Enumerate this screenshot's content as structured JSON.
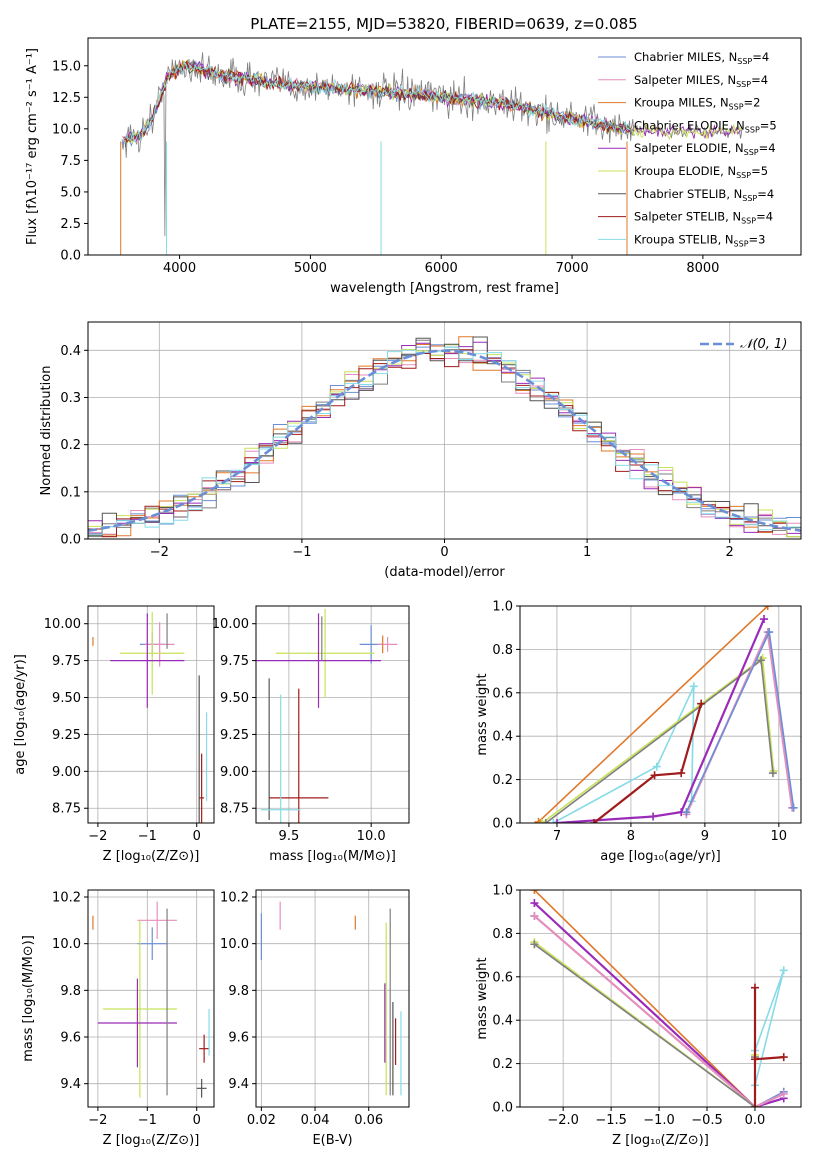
{
  "colors": {
    "Chabrier MILES": "#6a8fd6",
    "Salpeter MILES": "#e58fbe",
    "Kroupa MILES": "#e0782a",
    "Chabrier ELODIE": "#7f7f7f",
    "Salpeter ELODIE": "#9a2bb8",
    "Kroupa ELODIE": "#c7e35a",
    "Chabrier STELIB": "#555555",
    "Salpeter STELIB": "#a01c1c",
    "Kroupa STELIB": "#86dbe6"
  },
  "chart_data": [
    {
      "id": "spectrum",
      "type": "line",
      "title": "PLATE=2155, MJD=53820, FIBERID=0639, z=0.085",
      "xlabel": "wavelength [Angstrom, rest frame]",
      "ylabel": "Flux [fλ10⁻¹⁷ erg cm⁻² s⁻¹ A⁻¹]",
      "xlim": [
        3300,
        8750
      ],
      "ylim": [
        0,
        17.2
      ],
      "xticks": [
        4000,
        5000,
        6000,
        7000,
        8000
      ],
      "yticks": [
        0.0,
        2.5,
        5.0,
        7.5,
        10.0,
        12.5,
        15.0
      ],
      "grid": false,
      "legend_position": "top-right",
      "legend": [
        "Chabrier MILES, N_SSP=4",
        "Salpeter MILES, N_SSP=4",
        "Kroupa MILES, N_SSP=2",
        "Chabrier ELODIE, N_SSP=5",
        "Salpeter ELODIE, N_SSP=4",
        "Kroupa ELODIE, N_SSP=5",
        "Chabrier STELIB, N_SSP=4",
        "Salpeter STELIB, N_SSP=4",
        "Kroupa STELIB, N_SSP=3"
      ],
      "continuum": {
        "x": [
          3550,
          3700,
          3800,
          3900,
          4000,
          4100,
          4300,
          4500,
          4700,
          5000,
          5300,
          5600,
          5900,
          6200,
          6500,
          6800,
          7000,
          7200,
          7400,
          7500
        ],
        "y": [
          9.0,
          9.5,
          11.0,
          14.0,
          14.8,
          15.0,
          14.2,
          14.0,
          13.6,
          13.3,
          13.2,
          12.9,
          12.6,
          12.3,
          12.0,
          11.2,
          10.8,
          10.4,
          10.0,
          9.8
        ]
      }
    },
    {
      "id": "residuals",
      "type": "line",
      "xlabel": "(data-model)/error",
      "ylabel": "Normed distribution",
      "xlim": [
        -2.5,
        2.5
      ],
      "ylim": [
        0,
        0.46
      ],
      "xticks": [
        -2,
        -1,
        0,
        1,
        2
      ],
      "yticks": [
        0.0,
        0.1,
        0.2,
        0.3,
        0.4
      ],
      "grid": true,
      "legend_position": "top-right",
      "reference_label": "𝒩(0, 1)"
    },
    {
      "id": "age-vs-Z",
      "type": "scatter",
      "xlabel": "Z [log₁₀(Z/Z⊙)]",
      "ylabel": "age  [log₁₀(age/yr)]",
      "xlim": [
        -2.2,
        0.35
      ],
      "ylim": [
        8.65,
        10.12
      ],
      "xticks": [
        -2,
        -1,
        0
      ],
      "yticks": [
        8.75,
        9.0,
        9.25,
        9.5,
        9.75,
        10.0
      ],
      "grid": true,
      "points": [
        {
          "model": "Kroupa MILES",
          "x": -2.1,
          "xerr": 0.0,
          "y": 9.88,
          "yerr": 0.03
        },
        {
          "model": "Chabrier MILES",
          "x": -0.9,
          "xerr": 0.25,
          "y": 9.86,
          "yerr": 0.08
        },
        {
          "model": "Salpeter MILES",
          "x": -0.75,
          "xerr": 0.3,
          "y": 9.86,
          "yerr": 0.15
        },
        {
          "model": "Kroupa ELODIE",
          "x": -0.9,
          "xerr": 0.65,
          "y": 9.8,
          "yerr": 0.28
        },
        {
          "model": "Salpeter ELODIE",
          "x": -1.0,
          "xerr": 0.75,
          "y": 9.75,
          "yerr": 0.32
        },
        {
          "model": "Chabrier ELODIE",
          "x": -0.6,
          "xerr": 0.0,
          "y": 9.95,
          "yerr": 0.12
        },
        {
          "model": "Chabrier STELIB",
          "x": 0.05,
          "xerr": 0.0,
          "y": 9.15,
          "yerr": 0.5
        },
        {
          "model": "Salpeter STELIB",
          "x": 0.1,
          "xerr": 0.05,
          "y": 8.82,
          "yerr": 0.3
        },
        {
          "model": "Kroupa STELIB",
          "x": 0.2,
          "xerr": 0.0,
          "y": 9.1,
          "yerr": 0.3
        }
      ]
    },
    {
      "id": "age-vs-mass",
      "type": "scatter",
      "xlabel": "mass [log₁₀(M/M⊙)]",
      "ylabel": "",
      "xlim": [
        9.3,
        10.23
      ],
      "ylim": [
        8.65,
        10.12
      ],
      "xticks": [
        9.5,
        10.0
      ],
      "yticks": [
        8.75,
        9.0,
        9.25,
        9.5,
        9.75,
        10.0
      ],
      "grid": true,
      "points": [
        {
          "model": "Chabrier MILES",
          "x": 10.0,
          "xerr": 0.07,
          "y": 9.86,
          "yerr": 0.13
        },
        {
          "model": "Salpeter MILES",
          "x": 10.1,
          "xerr": 0.06,
          "y": 9.86,
          "yerr": 0.05
        },
        {
          "model": "Kroupa MILES",
          "x": 10.07,
          "xerr": 0.0,
          "y": 9.86,
          "yerr": 0.06
        },
        {
          "model": "Kroupa ELODIE",
          "x": 9.72,
          "xerr": 0.3,
          "y": 9.8,
          "yerr": 0.3
        },
        {
          "model": "Salpeter ELODIE",
          "x": 9.68,
          "xerr": 0.38,
          "y": 9.75,
          "yerr": 0.32
        },
        {
          "model": "Chabrier ELODIE",
          "x": 9.7,
          "xerr": 0.0,
          "y": 9.9,
          "yerr": 0.15
        },
        {
          "model": "Chabrier STELIB",
          "x": 9.38,
          "xerr": 0.0,
          "y": 9.15,
          "yerr": 0.48
        },
        {
          "model": "Salpeter STELIB",
          "x": 9.56,
          "xerr": 0.18,
          "y": 8.82,
          "yerr": 0.74
        },
        {
          "model": "Kroupa STELIB",
          "x": 9.45,
          "xerr": 0.12,
          "y": 8.74,
          "yerr": 0.78
        }
      ]
    },
    {
      "id": "mass-weight-vs-age",
      "type": "line",
      "xlabel": "age  [log₁₀(age/yr)]",
      "ylabel": "mass weight",
      "xlim": [
        6.5,
        10.3
      ],
      "ylim": [
        0,
        1
      ],
      "xticks": [
        7,
        8,
        9,
        10
      ],
      "yticks": [
        0.0,
        0.2,
        0.4,
        0.6,
        0.8,
        1.0
      ],
      "grid": true,
      "series": [
        {
          "model": "Kroupa MILES",
          "x": [
            6.75,
            9.85
          ],
          "y": [
            0.005,
            1.0
          ]
        },
        {
          "model": "Kroupa STELIB",
          "x": [
            6.95,
            8.35,
            8.85,
            8.82
          ],
          "y": [
            0.0,
            0.26,
            0.63,
            0.1
          ]
        },
        {
          "model": "Kroupa ELODIE",
          "x": [
            6.8,
            9.78,
            9.93
          ],
          "y": [
            0.0,
            0.76,
            0.24
          ]
        },
        {
          "model": "Chabrier ELODIE",
          "x": [
            6.85,
            9.76,
            9.92
          ],
          "y": [
            0.0,
            0.75,
            0.23
          ]
        },
        {
          "model": "Salpeter ELODIE",
          "x": [
            7.0,
            8.3,
            8.68,
            9.8
          ],
          "y": [
            0.0,
            0.03,
            0.05,
            0.94
          ]
        },
        {
          "model": "Salpeter STELIB",
          "x": [
            7.5,
            8.32,
            8.68,
            8.95
          ],
          "y": [
            0.0,
            0.22,
            0.23,
            0.55
          ]
        },
        {
          "model": "Salpeter MILES",
          "x": [
            8.75,
            9.85,
            10.18
          ],
          "y": [
            0.04,
            0.88,
            0.07
          ]
        },
        {
          "model": "Chabrier MILES",
          "x": [
            8.75,
            9.87,
            10.2
          ],
          "y": [
            0.05,
            0.88,
            0.07
          ]
        }
      ]
    },
    {
      "id": "mass-vs-Z",
      "type": "scatter",
      "xlabel": "Z [log₁₀(Z/Z⊙)]",
      "ylabel": "mass [log₁₀(M/M⊙)]",
      "xlim": [
        -2.2,
        0.35
      ],
      "ylim": [
        9.3,
        10.23
      ],
      "xticks": [
        -2,
        -1,
        0
      ],
      "yticks": [
        9.4,
        9.6,
        9.8,
        10.0,
        10.2
      ],
      "grid": true,
      "points": [
        {
          "model": "Kroupa MILES",
          "x": -2.1,
          "xerr": 0.0,
          "y": 10.09,
          "yerr": 0.03
        },
        {
          "model": "Chabrier MILES",
          "x": -0.9,
          "xerr": 0.3,
          "y": 10.0,
          "yerr": 0.07
        },
        {
          "model": "Salpeter MILES",
          "x": -0.8,
          "xerr": 0.4,
          "y": 10.1,
          "yerr": 0.08
        },
        {
          "model": "Kroupa ELODIE",
          "x": -1.15,
          "xerr": 0.75,
          "y": 9.72,
          "yerr": 0.38
        },
        {
          "model": "Salpeter ELODIE",
          "x": -1.2,
          "xerr": 0.8,
          "y": 9.66,
          "yerr": 0.19
        },
        {
          "model": "Chabrier ELODIE",
          "x": -0.6,
          "xerr": 0.0,
          "y": 9.75,
          "yerr": 0.4
        },
        {
          "model": "Chabrier STELIB",
          "x": 0.1,
          "xerr": 0.1,
          "y": 9.38,
          "yerr": 0.04
        },
        {
          "model": "Salpeter STELIB",
          "x": 0.15,
          "xerr": 0.1,
          "y": 9.55,
          "yerr": 0.06
        },
        {
          "model": "Kroupa STELIB",
          "x": 0.25,
          "xerr": 0.0,
          "y": 9.62,
          "yerr": 0.1
        }
      ]
    },
    {
      "id": "mass-vs-ebv",
      "type": "scatter",
      "xlabel": "E(B-V)",
      "ylabel": "",
      "xlim": [
        0.018,
        0.075
      ],
      "ylim": [
        9.3,
        10.23
      ],
      "xticks": [
        0.02,
        0.04,
        0.06
      ],
      "yticks": [
        9.4,
        9.6,
        9.8,
        10.0,
        10.2
      ],
      "grid": true,
      "points": [
        {
          "model": "Chabrier MILES",
          "x": 0.02,
          "xerr": 0.0,
          "y": 10.03,
          "yerr": 0.1
        },
        {
          "model": "Salpeter MILES",
          "x": 0.027,
          "xerr": 0.0,
          "y": 10.12,
          "yerr": 0.06
        },
        {
          "model": "Kroupa MILES",
          "x": 0.055,
          "xerr": 0.0,
          "y": 10.09,
          "yerr": 0.03
        },
        {
          "model": "Salpeter ELODIE",
          "x": 0.066,
          "xerr": 0.0,
          "y": 9.66,
          "yerr": 0.17
        },
        {
          "model": "Kroupa ELODIE",
          "x": 0.0665,
          "xerr": 0.0,
          "y": 9.72,
          "yerr": 0.37
        },
        {
          "model": "Chabrier ELODIE",
          "x": 0.068,
          "xerr": 0.0,
          "y": 9.75,
          "yerr": 0.4
        },
        {
          "model": "Chabrier STELIB",
          "x": 0.069,
          "xerr": 0.0,
          "y": 9.55,
          "yerr": 0.2
        },
        {
          "model": "Salpeter STELIB",
          "x": 0.07,
          "xerr": 0.0,
          "y": 9.58,
          "yerr": 0.1
        },
        {
          "model": "Kroupa STELIB",
          "x": 0.072,
          "xerr": 0.0,
          "y": 9.53,
          "yerr": 0.18
        }
      ]
    },
    {
      "id": "mass-weight-vs-Z",
      "type": "line",
      "xlabel": "Z [log₁₀(Z/Z⊙)]",
      "ylabel": "mass weight",
      "xlim": [
        -2.45,
        0.48
      ],
      "ylim": [
        0,
        1
      ],
      "xticks": [
        -2.0,
        -1.5,
        -1.0,
        -0.5,
        0.0
      ],
      "yticks": [
        0.0,
        0.2,
        0.4,
        0.6,
        0.8,
        1.0
      ],
      "grid": true,
      "series": [
        {
          "model": "Kroupa MILES",
          "x": [
            -2.3,
            0.0
          ],
          "y": [
            1.0,
            0.0
          ]
        },
        {
          "model": "Salpeter ELODIE",
          "x": [
            -2.3,
            0.0,
            0.3
          ],
          "y": [
            0.94,
            0.0,
            0.04
          ]
        },
        {
          "model": "Chabrier MILES",
          "x": [
            -2.3,
            0.0,
            0.3
          ],
          "y": [
            0.88,
            0.0,
            0.07
          ]
        },
        {
          "model": "Salpeter MILES",
          "x": [
            -2.3,
            0.0,
            0.3
          ],
          "y": [
            0.88,
            0.0,
            0.06
          ]
        },
        {
          "model": "Kroupa ELODIE",
          "x": [
            -2.3,
            0.0,
            0.0
          ],
          "y": [
            0.76,
            0.0,
            0.24
          ]
        },
        {
          "model": "Chabrier ELODIE",
          "x": [
            -2.3,
            0.0,
            0.0
          ],
          "y": [
            0.75,
            0.0,
            0.23
          ]
        },
        {
          "model": "Kroupa STELIB",
          "x": [
            0.0,
            0.3,
            0.0
          ],
          "y": [
            0.1,
            0.63,
            0.26
          ]
        },
        {
          "model": "Salpeter STELIB",
          "x": [
            0.0,
            0.0,
            0.0,
            0.3
          ],
          "y": [
            0.55,
            0.0,
            0.22,
            0.23
          ]
        }
      ]
    }
  ]
}
